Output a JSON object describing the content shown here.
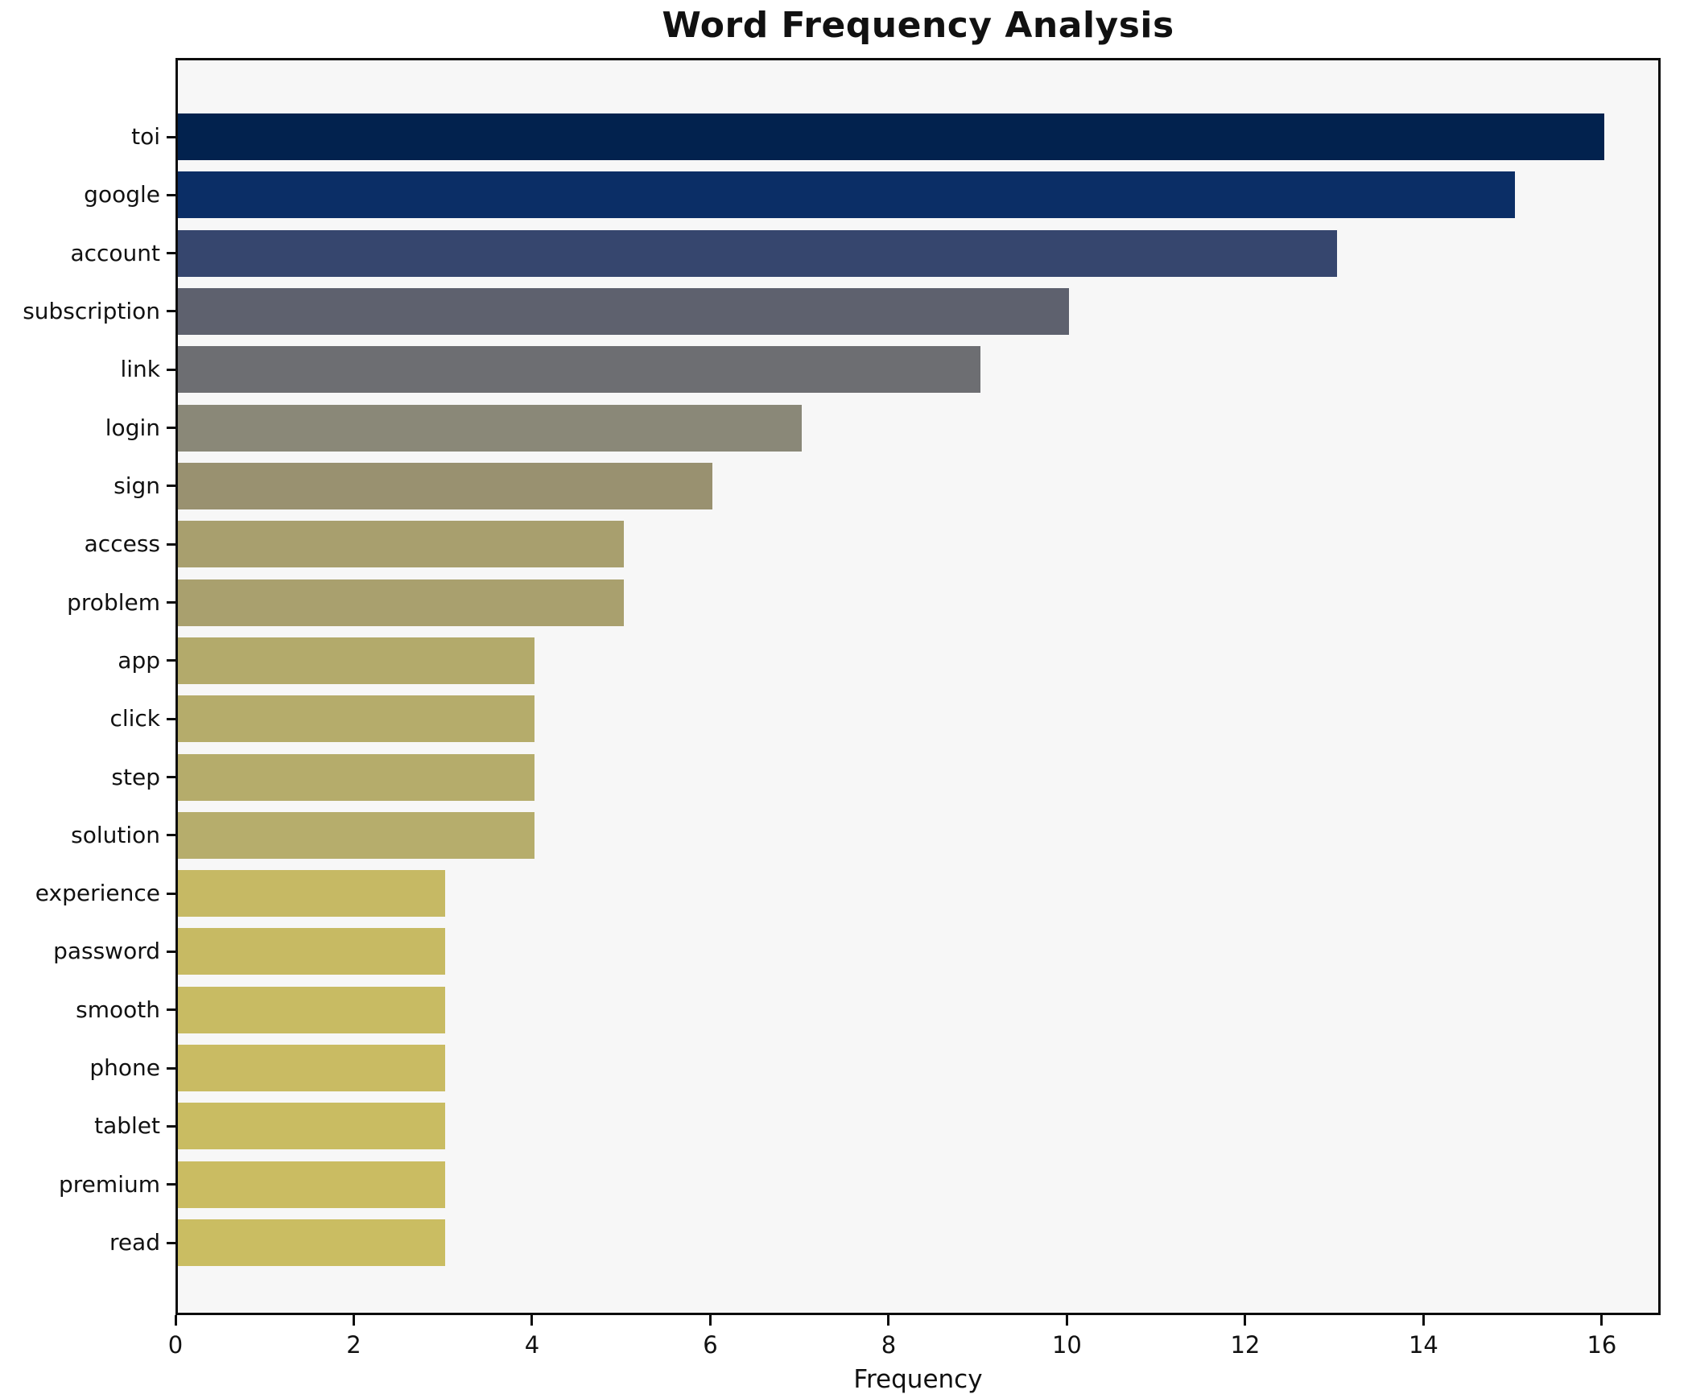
{
  "chart_data": {
    "type": "bar",
    "orientation": "horizontal",
    "title": "Word Frequency Analysis",
    "xlabel": "Frequency",
    "ylabel": "",
    "categories": [
      "toi",
      "google",
      "account",
      "subscription",
      "link",
      "login",
      "sign",
      "access",
      "problem",
      "app",
      "click",
      "step",
      "solution",
      "experience",
      "password",
      "smooth",
      "phone",
      "tablet",
      "premium",
      "read"
    ],
    "values": [
      16,
      15,
      13,
      10,
      9,
      7,
      6,
      5,
      5,
      4,
      4,
      4,
      4,
      3,
      3,
      3,
      3,
      3,
      3,
      3
    ],
    "bar_colors": [
      "#02224e",
      "#0b2e66",
      "#36466e",
      "#5e616e",
      "#6d6e72",
      "#8a8878",
      "#999170",
      "#a89f6e",
      "#a9a06e",
      "#b3aa6b",
      "#b5ac6b",
      "#b5ac6b",
      "#b6ad6c",
      "#c6b964",
      "#c7ba63",
      "#c8bb63",
      "#c9bb63",
      "#c9bc62",
      "#cabc62",
      "#cabd62"
    ],
    "xlim": [
      0,
      16.66
    ],
    "xticks": [
      0,
      2,
      4,
      6,
      8,
      10,
      12,
      14,
      16
    ],
    "grid": false,
    "legend": null,
    "plot_background": "#f7f7f7",
    "figure_background": "#ffffff",
    "frame_color": "#0d0d0d",
    "text_color": "#111111"
  }
}
